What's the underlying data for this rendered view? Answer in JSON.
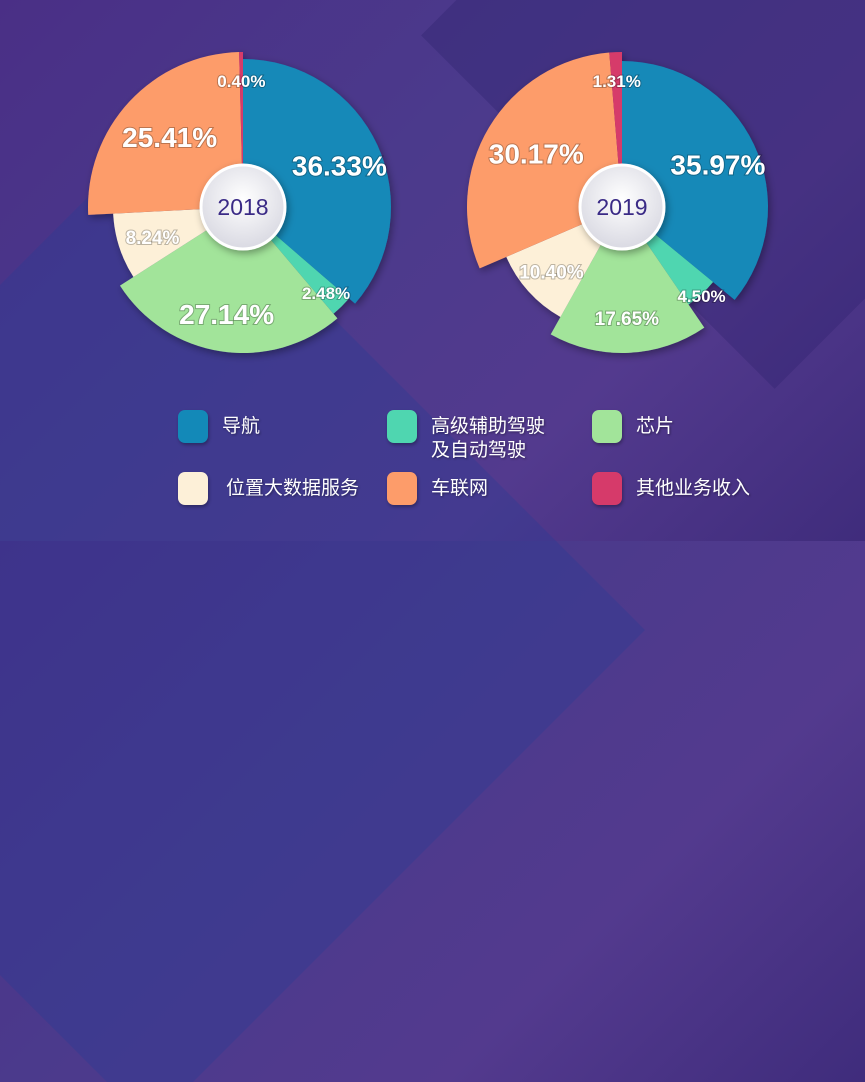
{
  "chart_data": [
    {
      "type": "pie",
      "title": "2018",
      "categories": [
        "导航",
        "高级辅助驾驶\n及自动驾驶",
        "芯片",
        "位置大数据服务",
        "车联网",
        "其他业务收入"
      ],
      "values": [
        36.33,
        2.48,
        27.14,
        8.24,
        25.41,
        0.4
      ],
      "labels": [
        "36.33%",
        "2.48%",
        "27.14%",
        "8.24%",
        "25.41%",
        "0.40%"
      ]
    },
    {
      "type": "pie",
      "title": "2019",
      "categories": [
        "导航",
        "高级辅助驾驶\n及自动驾驶",
        "芯片",
        "位置大数据服务",
        "车联网",
        "其他业务收入"
      ],
      "values": [
        35.97,
        4.5,
        17.65,
        10.4,
        30.17,
        1.31
      ],
      "labels": [
        "35.97%",
        "4.50%",
        "17.65%",
        "10.40%",
        "30.17%",
        "1.31%"
      ]
    }
  ],
  "legend": {
    "placement": "bottom",
    "items": [
      {
        "label": "导航",
        "color": "#1389b8"
      },
      {
        "label": "高级辅助驾驶\n及自动驾驶",
        "color": "#4fd6b0"
      },
      {
        "label": "芯片",
        "color": "#a2e49a"
      },
      {
        "label": "位置大数据服务",
        "color": "#fdf0d8"
      },
      {
        "label": "车联网",
        "color": "#fd9c6a"
      },
      {
        "label": "其他业务收入",
        "color": "#d63a6a"
      }
    ]
  }
}
